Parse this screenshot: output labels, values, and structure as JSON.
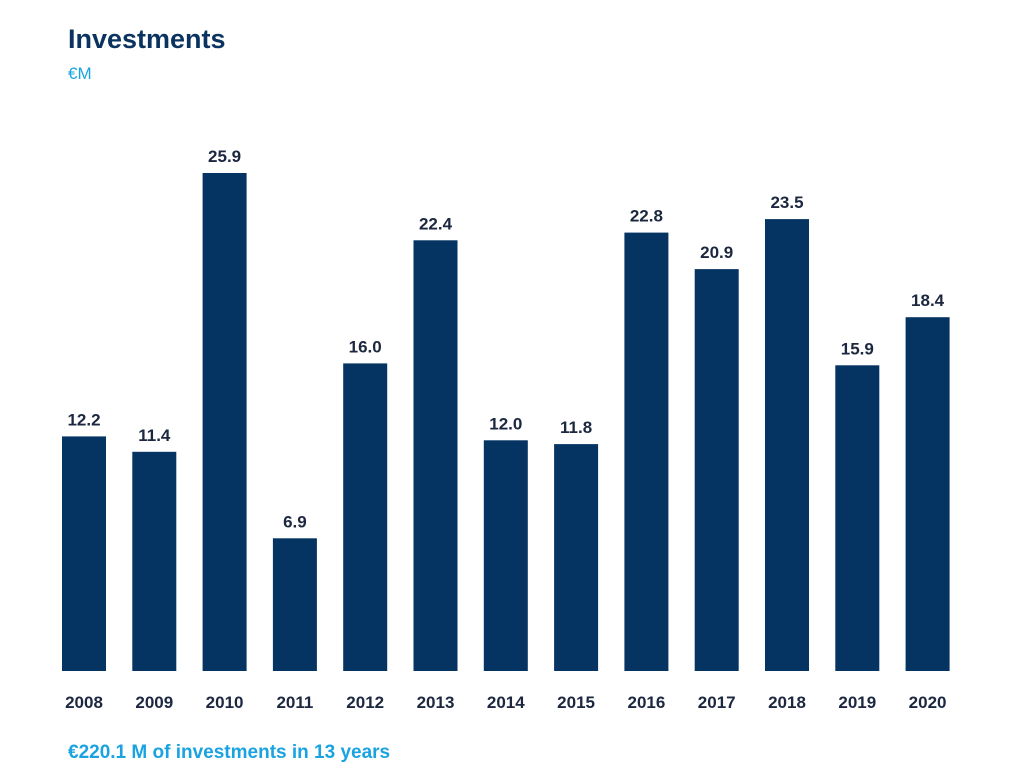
{
  "header": {
    "title": "Investments",
    "unit": "€M"
  },
  "footer": {
    "note": "€220.1 M of investments in 13 years"
  },
  "colors": {
    "bar": "#063462",
    "accent": "#1aa3e0",
    "title": "#0a335f",
    "label": "#1c2740"
  },
  "chart_data": {
    "type": "bar",
    "title": "Investments",
    "subtitle": "€M",
    "xlabel": "",
    "ylabel": "",
    "categories": [
      "2008",
      "2009",
      "2010",
      "2011",
      "2012",
      "2013",
      "2014",
      "2015",
      "2016",
      "2017",
      "2018",
      "2019",
      "2020"
    ],
    "values": [
      12.2,
      11.4,
      25.9,
      6.9,
      16.0,
      22.4,
      12.0,
      11.8,
      22.8,
      20.9,
      23.5,
      15.9,
      18.4
    ],
    "value_labels": [
      "12.2",
      "11.4",
      "25.9",
      "6.9",
      "16.0",
      "22.4",
      "12.0",
      "11.8",
      "22.8",
      "20.9",
      "23.5",
      "15.9",
      "18.4"
    ],
    "ylim": [
      0,
      25.9
    ],
    "grid": false,
    "legend": "none"
  }
}
